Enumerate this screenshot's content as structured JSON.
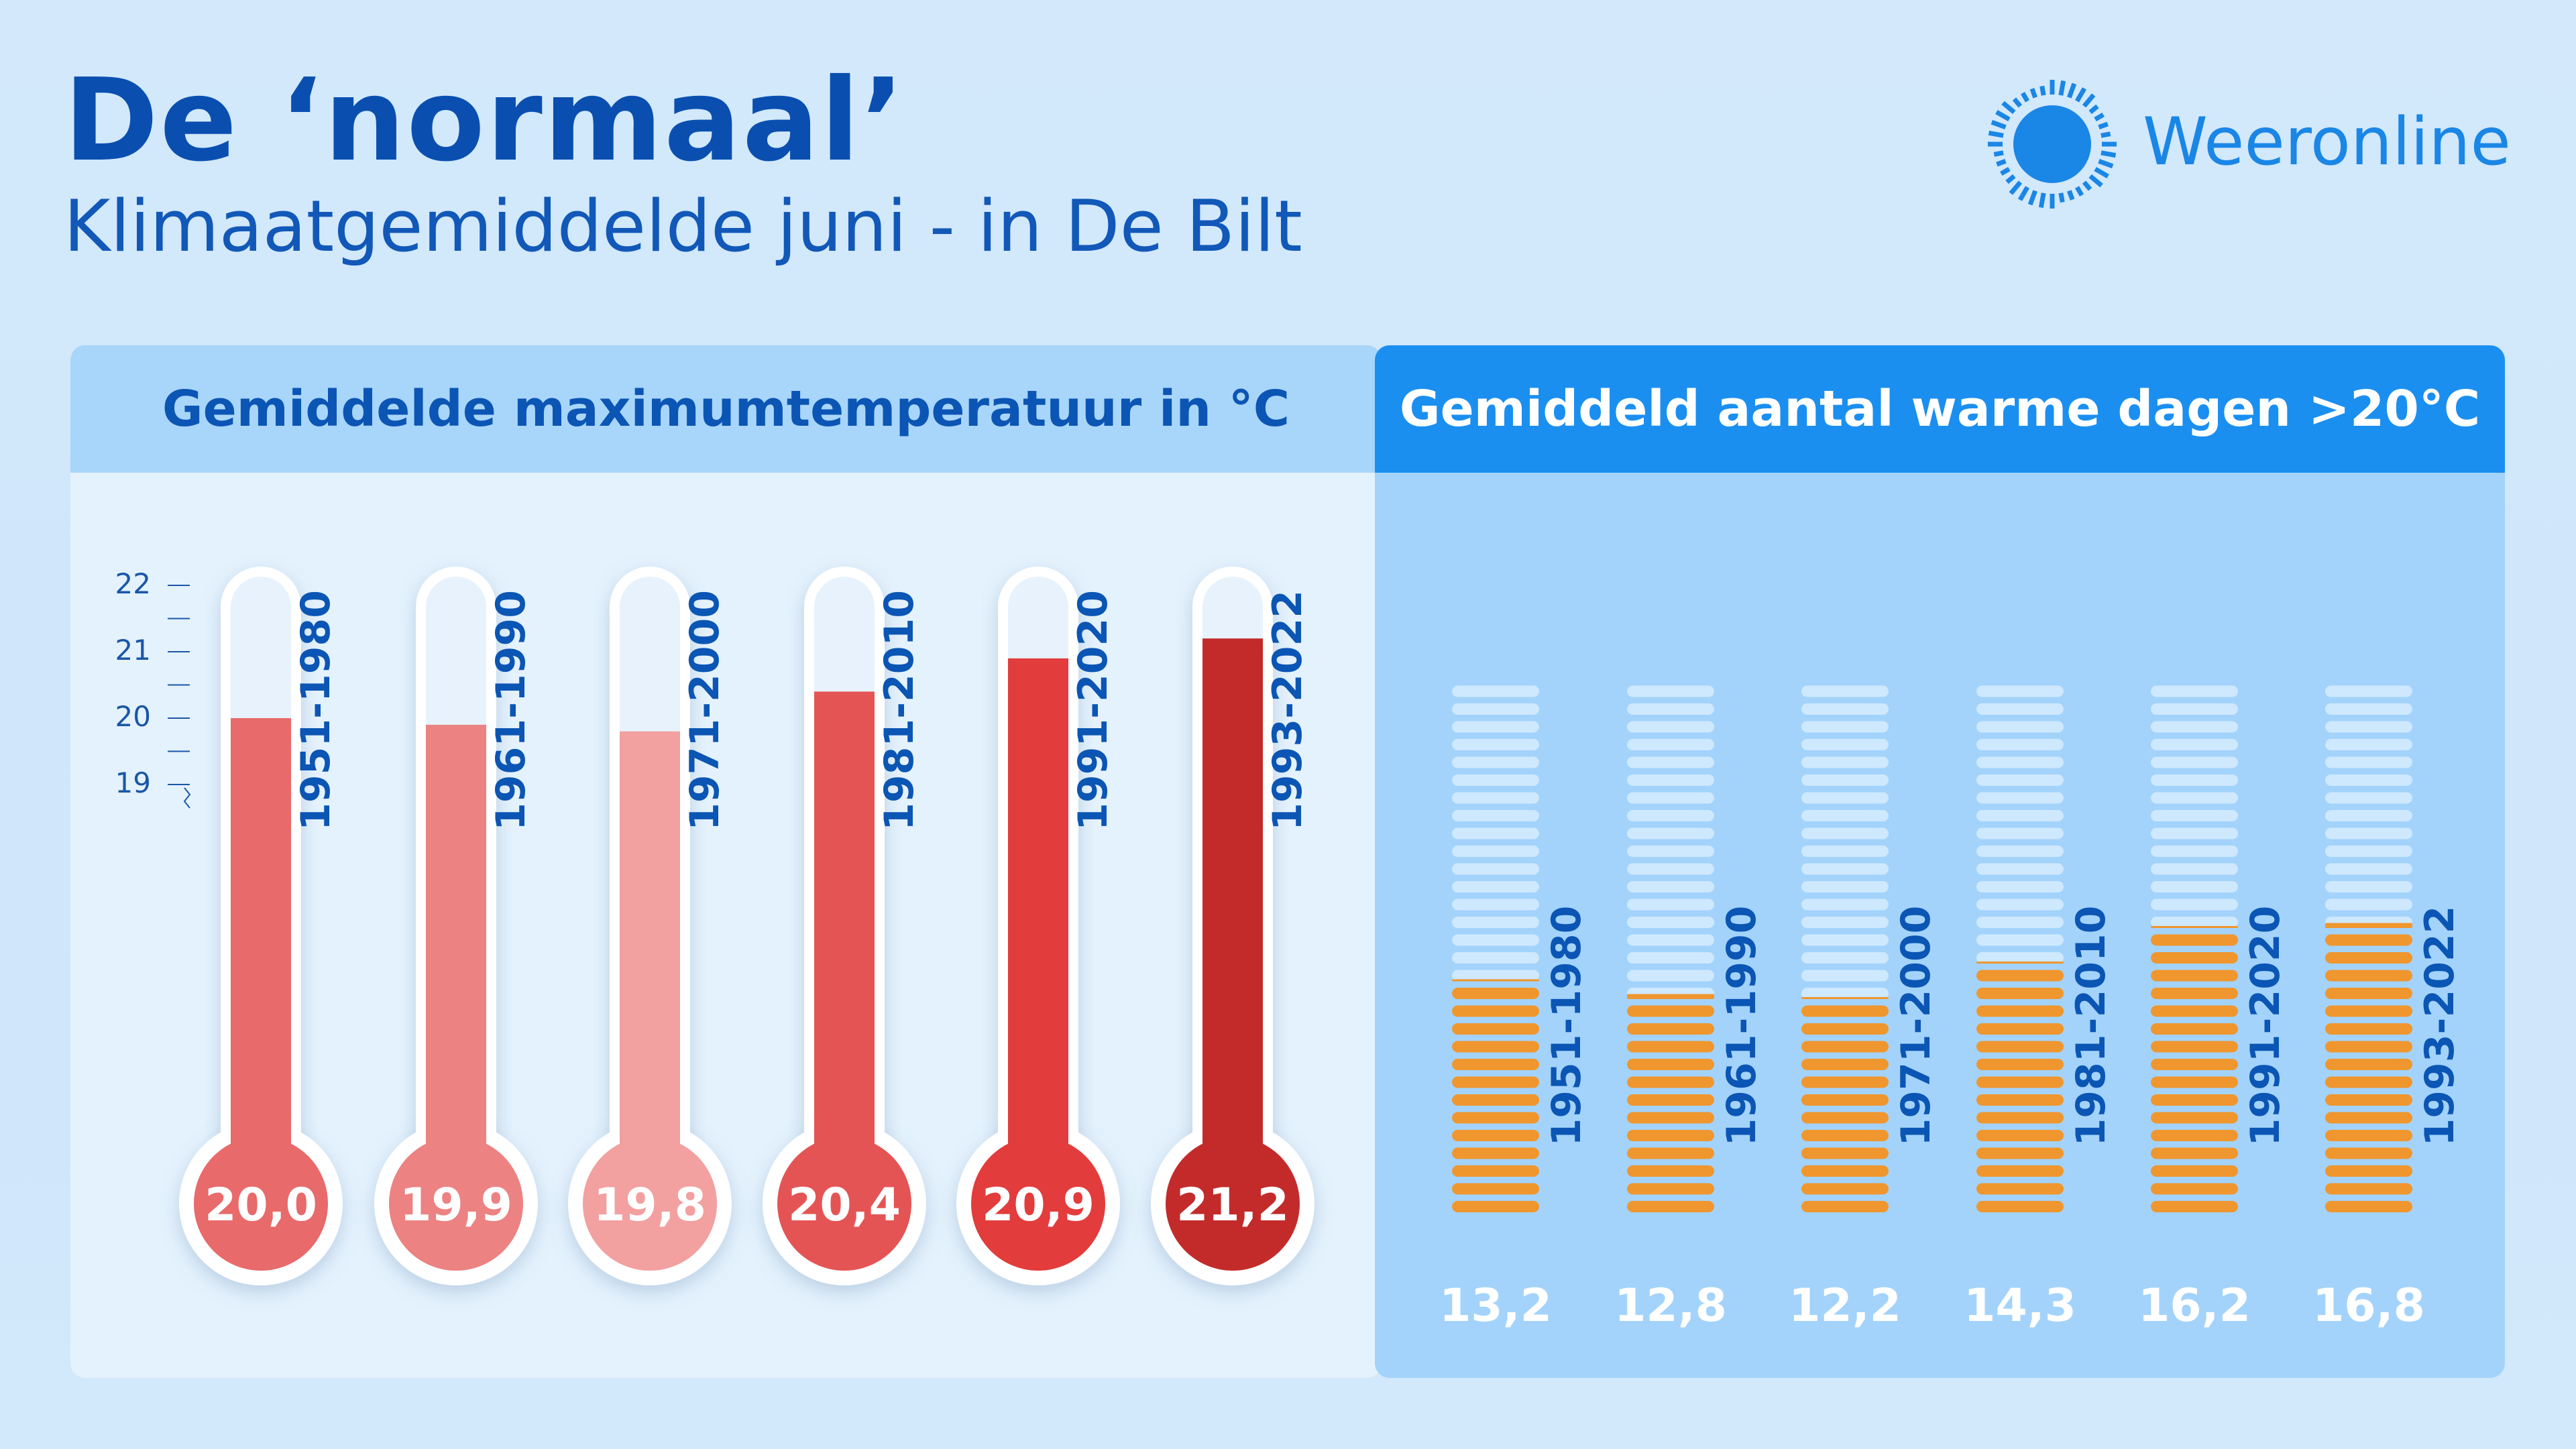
{
  "title": "De ‘normaal’",
  "subtitle": "Klimaatgemiddelde juni - in De Bilt",
  "logo": {
    "name": "Weeronline",
    "icon": "sun-icon"
  },
  "colors": {
    "accent": "#1a86e6",
    "title": "#0a4fb0",
    "warm_day": "#f0962e"
  },
  "chart_data": [
    {
      "type": "bar",
      "title": "Gemiddelde maximumtemperatuur in °C",
      "categories": [
        "1951-1980",
        "1961-1990",
        "1971-2000",
        "1981-2010",
        "1991-2020",
        "1993-2022"
      ],
      "values": [
        20.0,
        19.9,
        19.8,
        20.4,
        20.9,
        21.2
      ],
      "value_labels": [
        "20,0",
        "19,9",
        "19,8",
        "20,4",
        "20,9",
        "21,2"
      ],
      "fill_colors": [
        "#e86a6a",
        "#ec8282",
        "#f2a0a0",
        "#e55454",
        "#e33c3c",
        "#c32b2b"
      ],
      "ylim": [
        18.5,
        22
      ],
      "yticks": [
        19,
        20,
        21,
        22
      ],
      "ytick_labels": [
        "19",
        "20",
        "21",
        "22"
      ],
      "style": "thermometer"
    },
    {
      "type": "bar",
      "title": "Gemiddeld aantal warme dagen >20°C",
      "categories": [
        "1951-1980",
        "1961-1990",
        "1971-2000",
        "1981-2010",
        "1991-2020",
        "1993-2022"
      ],
      "values": [
        13.2,
        12.8,
        12.2,
        14.3,
        16.2,
        16.8
      ],
      "value_labels": [
        "13,2",
        "12,8",
        "12,2",
        "14,3",
        "16,2",
        "16,8"
      ],
      "ylim": [
        0,
        30
      ],
      "style": "stacked-day-stripes"
    }
  ]
}
